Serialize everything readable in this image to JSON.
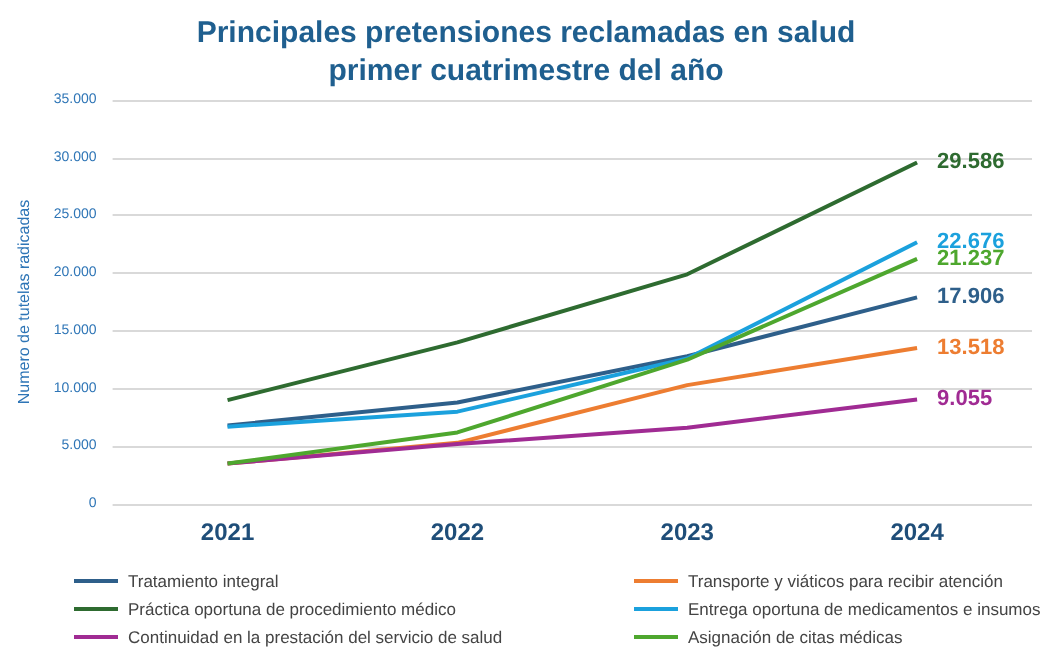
{
  "chart_data": {
    "type": "line",
    "title": "Principales pretensiones reclamadas en salud\nprimer cuatrimestre del año",
    "ylabel": "Numero de tutelas radicadas",
    "categories": [
      "2021",
      "2022",
      "2023",
      "2024"
    ],
    "series": [
      {
        "name": "Tratamiento integral",
        "color": "#2e5f8a",
        "values": [
          6800,
          8800,
          12800,
          17906
        ],
        "value_labels": [
          null,
          null,
          null,
          "17.906"
        ]
      },
      {
        "name": "Transporte y viáticos para recibir atención",
        "color": "#ed7d31",
        "values": [
          3500,
          5300,
          10300,
          13518
        ],
        "value_labels": [
          null,
          null,
          null,
          "13.518"
        ]
      },
      {
        "name": "Práctica oportuna de procedimiento médico",
        "color": "#2e6b30",
        "values": [
          9000,
          14000,
          19900,
          29586
        ],
        "value_labels": [
          null,
          null,
          null,
          "29.586"
        ]
      },
      {
        "name": "Entrega oportuna de medicamentos e insumos",
        "color": "#1ba1dd",
        "values": [
          6700,
          8000,
          12600,
          22676
        ],
        "value_labels": [
          null,
          null,
          null,
          "22.676"
        ]
      },
      {
        "name": "Continuidad en la prestación del servicio de salud",
        "color": "#a02b93",
        "values": [
          3500,
          5200,
          6600,
          9055
        ],
        "value_labels": [
          null,
          null,
          null,
          "9.055"
        ]
      },
      {
        "name": "Asignación de citas médicas",
        "color": "#4ea72e",
        "values": [
          3500,
          6200,
          12500,
          21237
        ],
        "value_labels": [
          null,
          null,
          null,
          "21.237"
        ]
      }
    ],
    "ylim": [
      0,
      35000
    ],
    "yticks": [
      {
        "value": 0,
        "label": "0"
      },
      {
        "value": 5000,
        "label": "5.000"
      },
      {
        "value": 10000,
        "label": "10.000"
      },
      {
        "value": 15000,
        "label": "15.000"
      },
      {
        "value": 20000,
        "label": "20.000"
      },
      {
        "value": 25000,
        "label": "25.000"
      },
      {
        "value": 30000,
        "label": "30.000"
      },
      {
        "value": 35000,
        "label": "35.000"
      }
    ],
    "grid": "y",
    "legend": "bottom",
    "marker": "none",
    "line_style": "solid"
  }
}
